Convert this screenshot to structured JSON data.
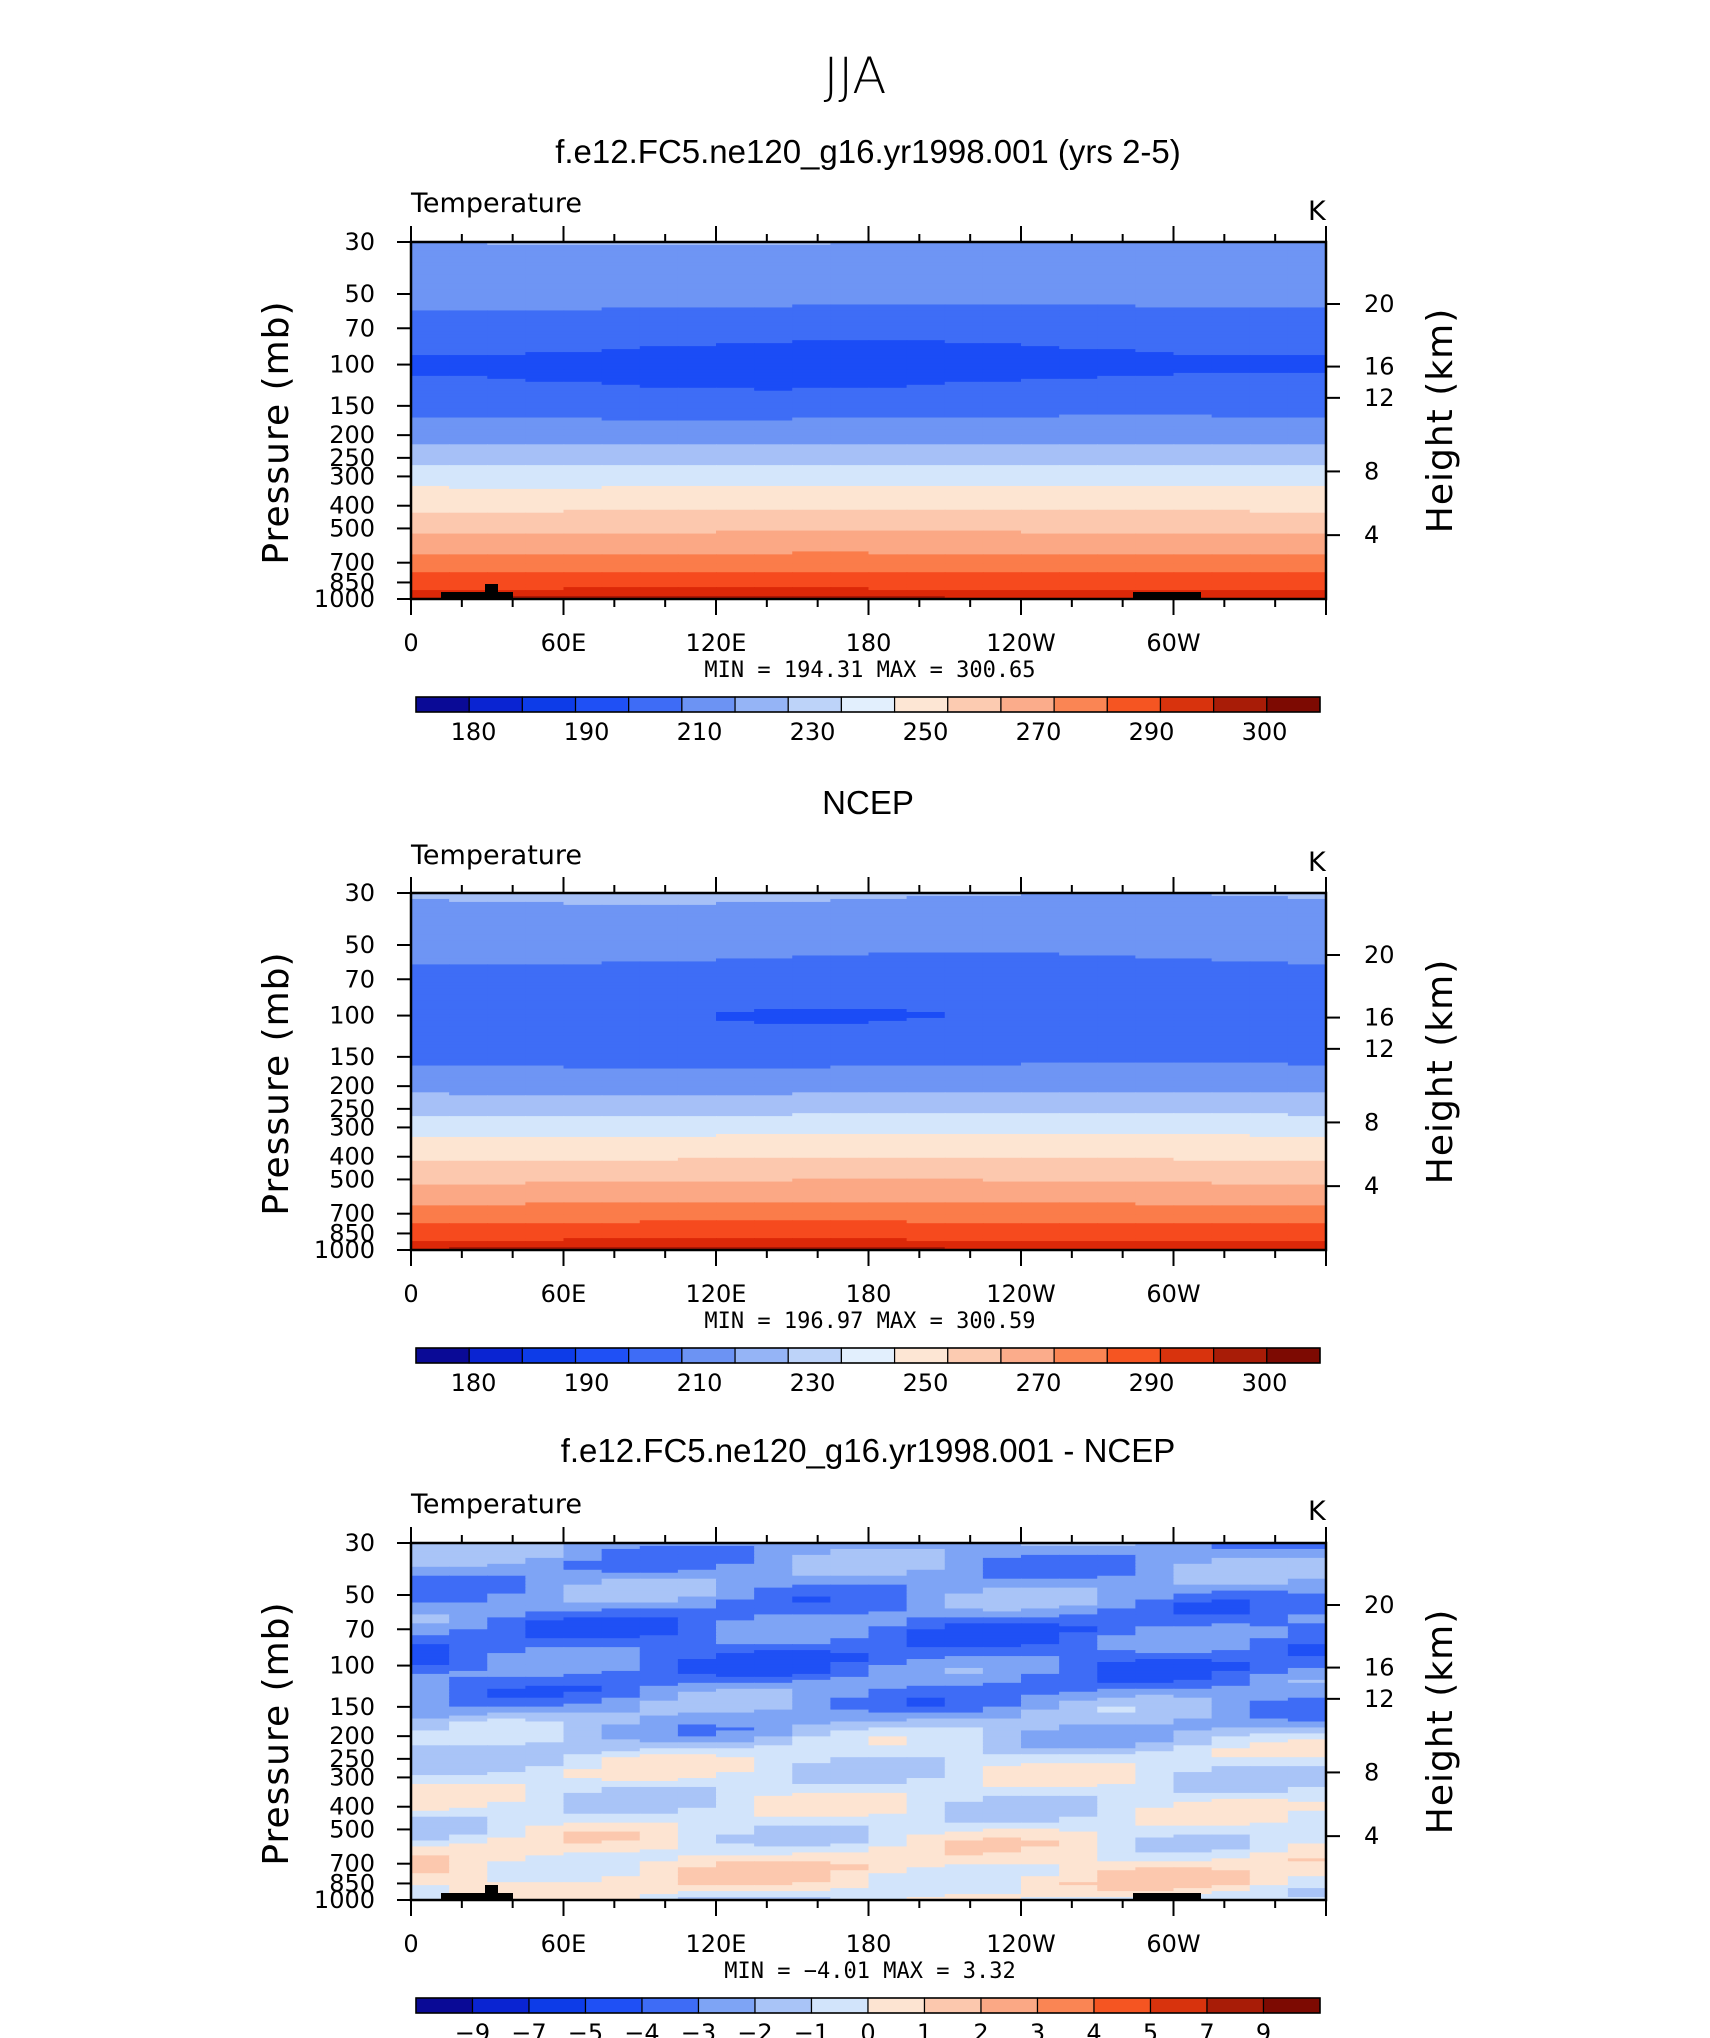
{
  "figure_title": "JJA",
  "panels": [
    {
      "title": "f.e12.FC5.ne120_g16.yr1998.001 (yrs 2-5)",
      "variable_label": "Temperature",
      "unit_label": "K",
      "stats_text": "MIN  =  194.31    MAX  =  300.65",
      "colorbar_labels": [
        "180",
        "190",
        "210",
        "230",
        "250",
        "270",
        "290",
        "300"
      ]
    },
    {
      "title": "NCEP",
      "variable_label": "Temperature",
      "unit_label": "K",
      "stats_text": "MIN  =  196.97    MAX  =  300.59",
      "colorbar_labels": [
        "180",
        "190",
        "210",
        "230",
        "250",
        "270",
        "290",
        "300"
      ]
    },
    {
      "title": "f.e12.FC5.ne120_g16.yr1998.001 - NCEP",
      "variable_label": "Temperature",
      "unit_label": "K",
      "stats_text": "MIN  =    −4.01    MAX  =      3.32",
      "colorbar_labels": [
        "−9",
        "−7",
        "−5",
        "−4",
        "−3",
        "−2",
        "−1",
        "0",
        "1",
        "2",
        "3",
        "4",
        "5",
        "7",
        "9"
      ]
    }
  ],
  "chart_data": [
    {
      "type": "heatmap",
      "title": "f.e12.FC5.ne120_g16.yr1998.001 (yrs 2-5)",
      "subtitle": "Temperature",
      "units": "K",
      "ylabel": "Pressure (mb)",
      "ylabel_right": "Height (km)",
      "y_scale": "log",
      "y_ticks": [
        30,
        50,
        70,
        100,
        150,
        200,
        250,
        300,
        400,
        500,
        700,
        850,
        1000
      ],
      "y_right_ticks": [
        20,
        16,
        12,
        8,
        4
      ],
      "x_tick_labels": [
        "0",
        "60E",
        "120E",
        "180",
        "120W",
        "60W"
      ],
      "min": 194.31,
      "max": 300.65,
      "contour_levels": [
        180,
        185,
        190,
        200,
        210,
        220,
        230,
        240,
        250,
        260,
        270,
        280,
        290,
        295,
        300
      ],
      "profile": [
        {
          "p": 30,
          "t": 220
        },
        {
          "p": 50,
          "t": 213
        },
        {
          "p": 70,
          "t": 205
        },
        {
          "p": 100,
          "t": 196
        },
        {
          "p": 150,
          "t": 206
        },
        {
          "p": 200,
          "t": 216
        },
        {
          "p": 250,
          "t": 226
        },
        {
          "p": 300,
          "t": 236
        },
        {
          "p": 400,
          "t": 248
        },
        {
          "p": 500,
          "t": 258
        },
        {
          "p": 700,
          "t": 274
        },
        {
          "p": 850,
          "t": 286
        },
        {
          "p": 1000,
          "t": 296
        }
      ]
    },
    {
      "type": "heatmap",
      "title": "NCEP",
      "subtitle": "Temperature",
      "units": "K",
      "ylabel": "Pressure (mb)",
      "ylabel_right": "Height (km)",
      "y_scale": "log",
      "y_ticks": [
        30,
        50,
        70,
        100,
        150,
        200,
        250,
        300,
        400,
        500,
        700,
        850,
        1000
      ],
      "y_right_ticks": [
        20,
        16,
        12,
        8,
        4
      ],
      "x_tick_labels": [
        "0",
        "60E",
        "120E",
        "180",
        "120W",
        "60W"
      ],
      "min": 196.97,
      "max": 300.59,
      "contour_levels": [
        180,
        185,
        190,
        200,
        210,
        220,
        230,
        240,
        250,
        260,
        270,
        280,
        290,
        295,
        300
      ],
      "profile": [
        {
          "p": 30,
          "t": 221
        },
        {
          "p": 50,
          "t": 212
        },
        {
          "p": 70,
          "t": 207
        },
        {
          "p": 100,
          "t": 202
        },
        {
          "p": 150,
          "t": 207
        },
        {
          "p": 200,
          "t": 217
        },
        {
          "p": 250,
          "t": 227
        },
        {
          "p": 300,
          "t": 237
        },
        {
          "p": 400,
          "t": 249
        },
        {
          "p": 500,
          "t": 259
        },
        {
          "p": 700,
          "t": 275
        },
        {
          "p": 850,
          "t": 286
        },
        {
          "p": 1000,
          "t": 296
        }
      ]
    },
    {
      "type": "heatmap",
      "title": "f.e12.FC5.ne120_g16.yr1998.001 - NCEP",
      "subtitle": "Temperature",
      "units": "K",
      "ylabel": "Pressure (mb)",
      "ylabel_right": "Height (km)",
      "y_scale": "log",
      "y_ticks": [
        30,
        50,
        70,
        100,
        150,
        200,
        250,
        300,
        400,
        500,
        700,
        850,
        1000
      ],
      "y_right_ticks": [
        20,
        16,
        12,
        8,
        4
      ],
      "x_tick_labels": [
        "0",
        "60E",
        "120E",
        "180",
        "120W",
        "60W"
      ],
      "min": -4.01,
      "max": 3.32,
      "contour_levels": [
        -9,
        -7,
        -5,
        -4,
        -3,
        -2,
        -1,
        0,
        1,
        2,
        3,
        4,
        5,
        7,
        9
      ],
      "profile": [
        {
          "p": 30,
          "t": -2.5
        },
        {
          "p": 50,
          "t": -2.5
        },
        {
          "p": 70,
          "t": -3.5
        },
        {
          "p": 100,
          "t": -3.5
        },
        {
          "p": 150,
          "t": -2.5
        },
        {
          "p": 200,
          "t": -1.5
        },
        {
          "p": 250,
          "t": -0.5
        },
        {
          "p": 300,
          "t": -0.5
        },
        {
          "p": 400,
          "t": -0.5
        },
        {
          "p": 500,
          "t": -0.5
        },
        {
          "p": 700,
          "t": 0.5
        },
        {
          "p": 850,
          "t": 0.5
        },
        {
          "p": 1000,
          "t": -0.5
        }
      ]
    }
  ],
  "colors": {
    "palette": [
      "#00058c",
      "#0015c8",
      "#0532e6",
      "#1b4cf6",
      "#3e6df6",
      "#6e95f4",
      "#a6c0f7",
      "#d4e6fb",
      "#fde5d2",
      "#fcc8ae",
      "#fba885",
      "#fb7c4a",
      "#f64a1e",
      "#dc2808",
      "#aa1806",
      "#7a0a02"
    ],
    "strip_colors": [
      "#0a0a96",
      "#0a24d2",
      "#0d3ce8",
      "#1f50f5",
      "#3e6cf6",
      "#6c93f3",
      "#95b4f6",
      "#bdd3f9",
      "#e2effd",
      "#fde6d4",
      "#fccbb1",
      "#fbac8b",
      "#fa8554",
      "#f55522",
      "#d8330d",
      "#a81c07",
      "#7d0a02"
    ],
    "strip_colors_diff": [
      "#0a0a96",
      "#0a24d2",
      "#0d3ce8",
      "#1f50f5",
      "#3e6cf6",
      "#7ea4f5",
      "#a9c4f7",
      "#d2e4fb",
      "#fde4d2",
      "#fcc8ae",
      "#fba885",
      "#fa8554",
      "#f55522",
      "#d8330d",
      "#a81c07",
      "#7d0a02"
    ]
  }
}
